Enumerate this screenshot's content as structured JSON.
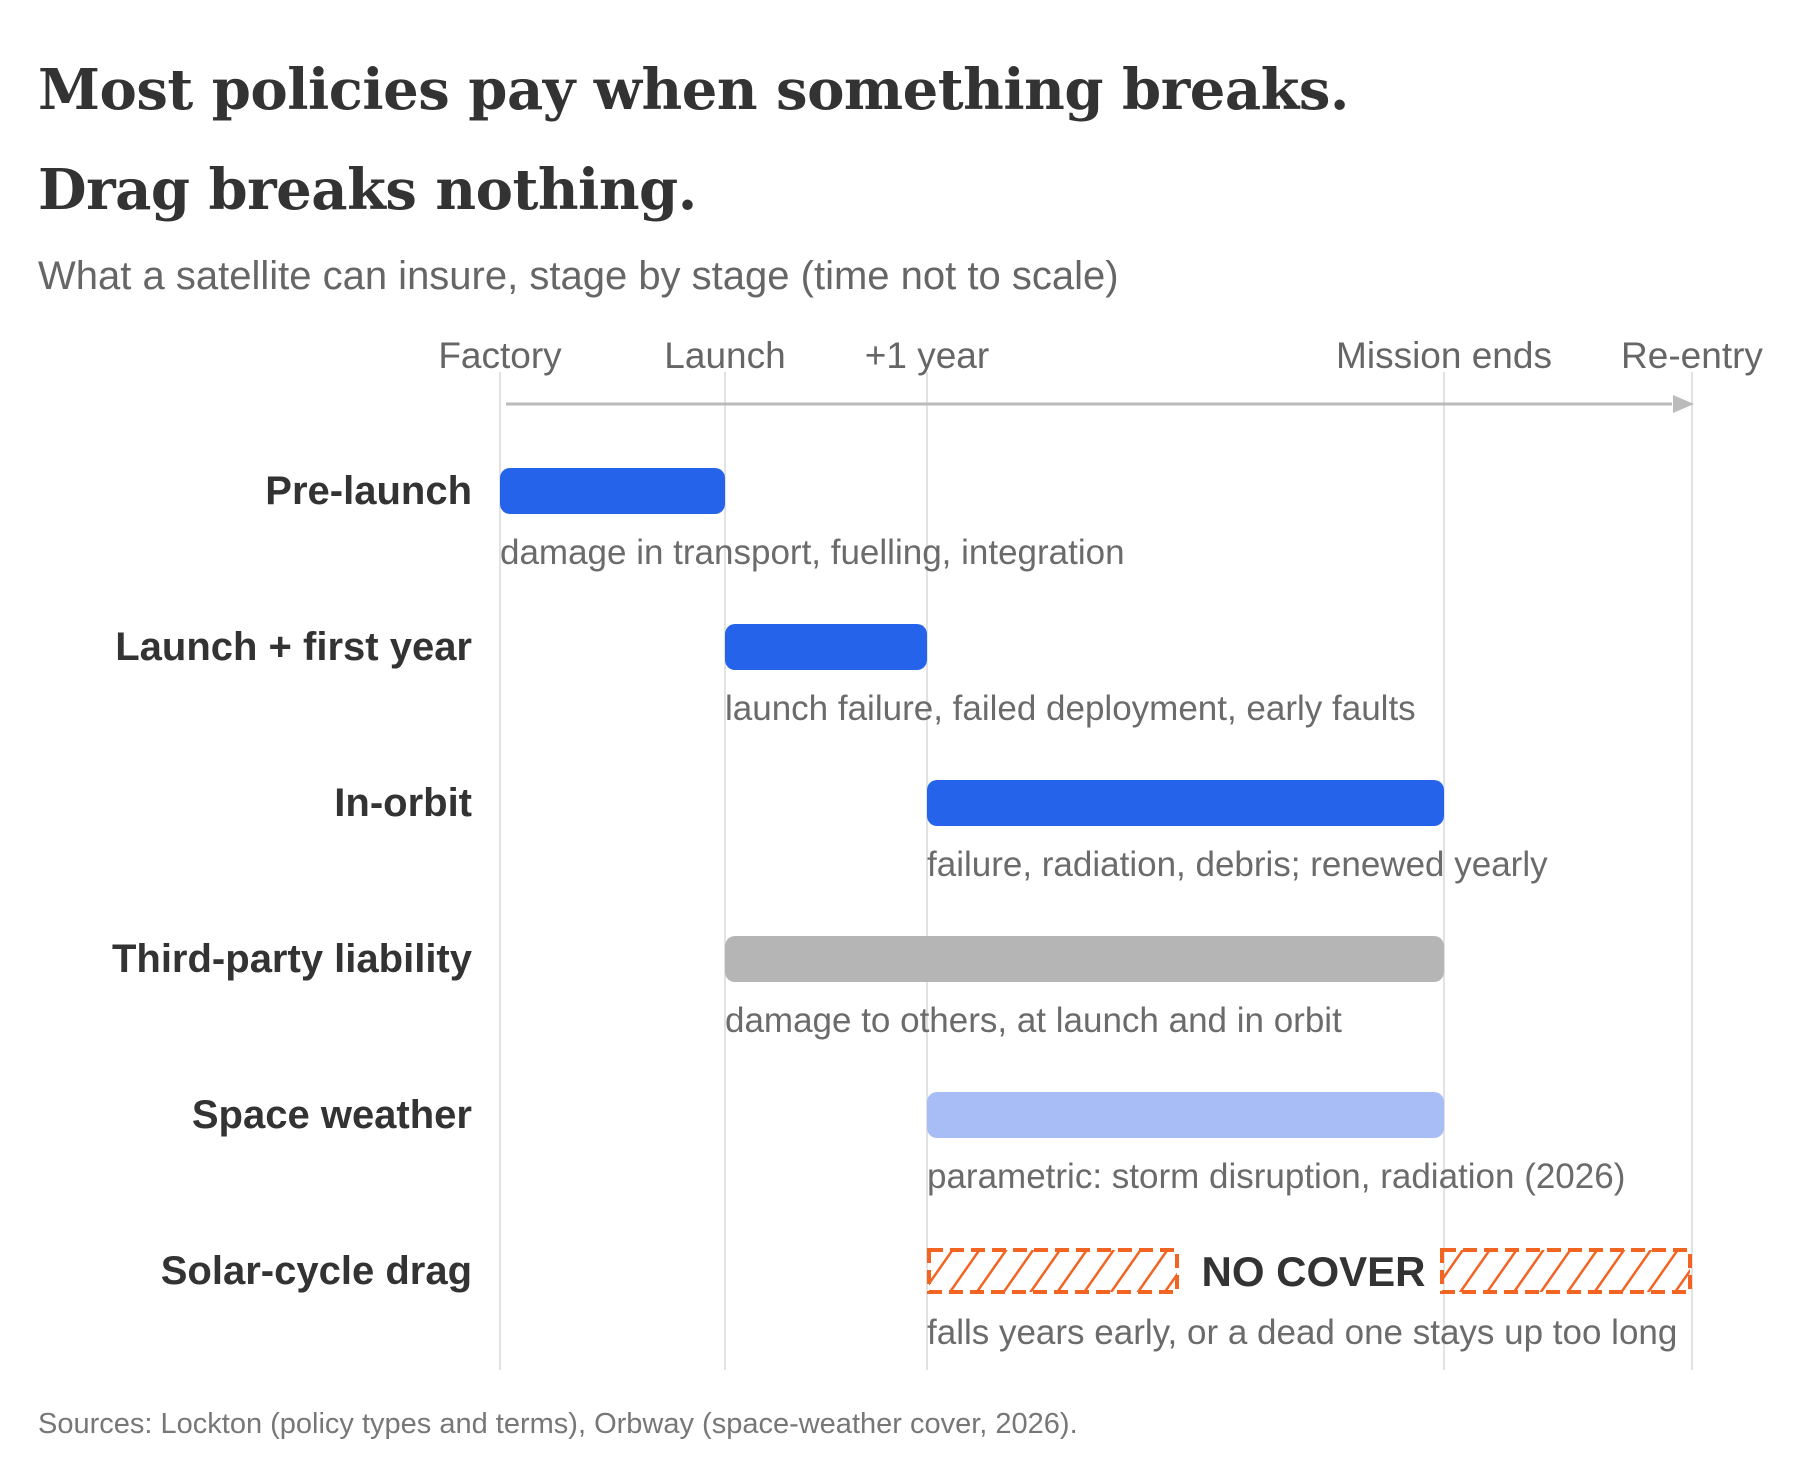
{
  "title": [
    "Most policies pay when something breaks.",
    "Drag breaks nothing."
  ],
  "subtitle": "What a satellite can insure, stage by stage (time not to scale)",
  "source": "Sources: Lockton (policy types and terms), Orbway (space-weather cover, 2026).",
  "colors": {
    "insured": "#2563eb",
    "liability": "#b5b5b5",
    "parametric": "#a8bdf5",
    "no_cover": "#f26422",
    "label": "#333333",
    "annotation": "#6b6b6b",
    "axis": "#bbbbbb",
    "gridline": "#e2e2e2"
  },
  "chart_data": {
    "type": "timeline",
    "milestones": [
      "Factory",
      "Launch",
      "+1 year",
      "Mission ends",
      "Re-entry"
    ],
    "rows": [
      {
        "label": "Pre-launch",
        "start": "Factory",
        "end": "Launch",
        "kind": "insured",
        "note": "damage in transport, fuelling, integration"
      },
      {
        "label": "Launch + first year",
        "start": "Launch",
        "end": "+1 year",
        "kind": "insured",
        "note": "launch failure, failed deployment, early faults"
      },
      {
        "label": "In-orbit",
        "start": "+1 year",
        "end": "Mission ends",
        "kind": "insured",
        "note": "failure, radiation, debris; renewed yearly"
      },
      {
        "label": "Third-party liability",
        "start": "Launch",
        "end": "Mission ends",
        "kind": "liability",
        "note": "damage to others, at launch and in orbit"
      },
      {
        "label": "Space weather",
        "start": "+1 year",
        "end": "Mission ends",
        "kind": "parametric",
        "note": "parametric: storm disruption, radiation (2026)"
      },
      {
        "label": "Solar-cycle drag",
        "start": "+1 year",
        "end": "Re-entry",
        "kind": "no_cover",
        "bar_text": "NO COVER",
        "note": "falls years early, or a dead one stays up too long"
      }
    ]
  }
}
